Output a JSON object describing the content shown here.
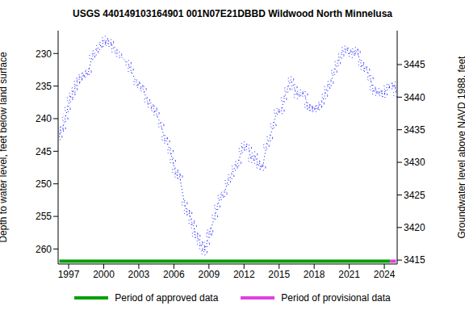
{
  "chart_data": {
    "type": "line",
    "title": "USGS 440149103164901 001N07E21DBBD Wildwood North Minnelusa",
    "y_label": "Depth to water level, feet below land surface",
    "y2_label": "Groundwater level above NAVD 1988, feet",
    "x": [
      1996.2,
      1996.3,
      1996.5,
      1996.7,
      1996.9,
      1997.1,
      1997.3,
      1997.5,
      1997.7,
      1997.9,
      1998.1,
      1998.4,
      1998.7,
      1999.0,
      1999.3,
      1999.6,
      1999.9,
      2000.1,
      2000.4,
      2000.6,
      2000.9,
      2001.3,
      2002.1,
      2002.3,
      2002.8,
      2003.1,
      2003.4,
      2003.7,
      2004.0,
      2004.3,
      2004.5,
      2004.9,
      2005.2,
      2005.4,
      2005.7,
      2005.9,
      2006.1,
      2006.3,
      2006.5,
      2006.9,
      2007.1,
      2007.3,
      2007.5,
      2007.7,
      2007.8,
      2008.0,
      2008.2,
      2008.4,
      2008.6,
      2008.8,
      2009.0,
      2009.1,
      2009.5,
      2009.7,
      2010.0,
      2010.3,
      2010.6,
      2010.9,
      2011.2,
      2011.5,
      2011.8,
      2012.0,
      2012.4,
      2012.6,
      2012.9,
      2013.1,
      2013.3,
      2013.6,
      2013.9,
      2014.2,
      2014.5,
      2014.8,
      2015.2,
      2015.4,
      2015.7,
      2016.0,
      2016.3,
      2016.5,
      2016.8,
      2017.2,
      2017.4,
      2017.6,
      2017.8,
      2018.1,
      2018.4,
      2018.6,
      2018.9,
      2019.1,
      2019.4,
      2019.7,
      2020.0,
      2020.3,
      2020.6,
      2020.9,
      2021.2,
      2021.5,
      2021.7,
      2022.0,
      2022.2,
      2022.5,
      2022.8,
      2023.0,
      2023.2,
      2023.5,
      2023.8,
      2024.0,
      2024.2,
      2024.6,
      2024.9,
      2025.0
    ],
    "series": [
      {
        "name": "Depth to water level",
        "color": "#0000ff",
        "marker": "circle",
        "line_style": "dotted",
        "values": [
          242.8,
          241.7,
          241.5,
          240.0,
          238.5,
          237.0,
          236.3,
          235.5,
          234.5,
          234.0,
          233.5,
          233.2,
          232.8,
          230.5,
          229.8,
          229.0,
          228.5,
          227.8,
          228.5,
          228.3,
          229.5,
          230.2,
          231.5,
          232.5,
          234.5,
          235.0,
          235.5,
          237.2,
          238.0,
          238.5,
          239.2,
          241.0,
          243.0,
          243.5,
          245.0,
          246.5,
          248.0,
          248.7,
          248.9,
          253.0,
          254.3,
          254.5,
          255.8,
          256.5,
          257.8,
          258.0,
          259.0,
          259.7,
          260.5,
          259.2,
          257.8,
          257.3,
          255.0,
          253.5,
          252.0,
          251.5,
          249.7,
          248.8,
          247.5,
          246.8,
          244.8,
          244.0,
          244.5,
          246.3,
          245.5,
          246.6,
          247.3,
          247.5,
          244.2,
          243.0,
          241.0,
          238.9,
          238.8,
          237.0,
          235.5,
          234.0,
          235.2,
          236.5,
          236.0,
          236.3,
          238.0,
          238.3,
          238.5,
          238.5,
          238.2,
          237.7,
          236.5,
          235.3,
          234.5,
          232.8,
          231.5,
          230.3,
          229.3,
          229.6,
          230.2,
          229.5,
          229.8,
          231.5,
          232.2,
          232.5,
          233.8,
          235.3,
          236.0,
          235.8,
          236.2,
          236.3,
          235.2,
          235.0,
          234.8,
          236.2
        ]
      }
    ],
    "periods": [
      {
        "name": "Period of approved data",
        "color": "#00a000",
        "start": 1996.2,
        "end": 2024.5
      },
      {
        "name": "Period of provisional data",
        "color": "#e040e0",
        "start": 2024.5,
        "end": 2025.0
      }
    ],
    "xlim": [
      1996.1,
      2025.1
    ],
    "xticks": [
      1997,
      2000,
      2003,
      2006,
      2009,
      2012,
      2015,
      2018,
      2021,
      2024
    ],
    "ylim": [
      226.5,
      262.3
    ],
    "yticks": [
      230,
      235,
      240,
      245,
      250,
      255,
      260
    ],
    "y2lim": [
      3414.4,
      3450.2
    ],
    "y2ticks": [
      3415,
      3420,
      3425,
      3430,
      3435,
      3440,
      3445
    ],
    "legend": "bottom",
    "grid": false
  }
}
